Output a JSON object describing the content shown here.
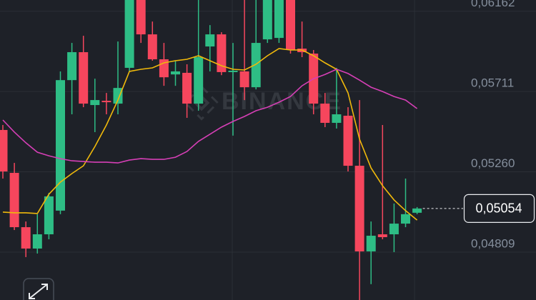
{
  "chart_data": {
    "type": "candlestick",
    "watermark": "BINANCE",
    "ylim": [
      0.0454,
      0.06225
    ],
    "yticks": [
      {
        "value": 0.06162,
        "label": "0,06162"
      },
      {
        "value": 0.05711,
        "label": "0,05711"
      },
      {
        "value": 0.0526,
        "label": "0,05260"
      },
      {
        "value": 0.04809,
        "label": "0,04809"
      }
    ],
    "grid": true,
    "up_color": "#2ebd85",
    "down_color": "#f6465d",
    "open": [
      0.05495,
      0.05254,
      0.04949,
      0.04829,
      0.04909,
      0.05042,
      0.05775,
      0.05932,
      0.05635,
      0.05659,
      0.05643,
      0.05844,
      0.0624,
      0.06032,
      0.05892,
      0.05807,
      0.05816,
      0.05643,
      0.05964,
      0.06032,
      0.0582,
      0.05824,
      0.05735,
      0.06004,
      0.06012,
      0.0624,
      0.05952,
      0.05924,
      0.05643,
      0.05535,
      0.05575,
      0.05294,
      0.04813,
      0.04909,
      0.04909,
      0.04969,
      0.0503
    ],
    "high": [
      0.05523,
      0.0531,
      0.04981,
      0.05022,
      0.05142,
      0.05824,
      0.05984,
      0.06024,
      0.05783,
      0.05703,
      0.05992,
      0.0626,
      0.0626,
      0.06104,
      0.05984,
      0.05884,
      0.05864,
      0.0626,
      0.06084,
      0.06044,
      0.05984,
      0.0626,
      0.0626,
      0.0626,
      0.0626,
      0.0626,
      0.06104,
      0.05944,
      0.05703,
      0.05844,
      0.05623,
      0.05663,
      0.04981,
      0.05523,
      0.05082,
      0.05222,
      0.05062
    ],
    "low": [
      0.05222,
      0.04933,
      0.04781,
      0.04801,
      0.04881,
      0.05022,
      0.05583,
      0.05623,
      0.05483,
      0.05583,
      0.05583,
      0.05824,
      0.05984,
      0.05884,
      0.05743,
      0.05743,
      0.05563,
      0.05603,
      0.05824,
      0.05803,
      0.05463,
      0.05663,
      0.05723,
      0.05984,
      0.05984,
      0.05924,
      0.05904,
      0.05583,
      0.05511,
      0.05503,
      0.05262,
      0.0453,
      0.04629,
      0.04881,
      0.04809,
      0.04949,
      0.05022
    ],
    "close": [
      0.05262,
      0.04949,
      0.04829,
      0.04909,
      0.05122,
      0.05775,
      0.05932,
      0.05643,
      0.05663,
      0.05651,
      0.05731,
      0.0624,
      0.06032,
      0.05892,
      0.05791,
      0.05824,
      0.05643,
      0.05904,
      0.06032,
      0.0582,
      0.05828,
      0.05735,
      0.05984,
      0.0624,
      0.0624,
      0.05944,
      0.05932,
      0.05643,
      0.05535,
      0.05583,
      0.05294,
      0.04813,
      0.04901,
      0.04893,
      0.04969,
      0.05022,
      0.05054
    ],
    "overlays": [
      {
        "color": "#f0b90b",
        "values": [
          0.05034,
          0.0503,
          0.0503,
          0.05026,
          0.05134,
          0.05202,
          0.0525,
          0.05294,
          0.05402,
          0.05523,
          0.05663,
          0.05824,
          0.05836,
          0.05844,
          0.05872,
          0.05884,
          0.05892,
          0.05912,
          0.05884,
          0.05856,
          0.05836,
          0.05832,
          0.05864,
          0.05912,
          0.05952,
          0.05944,
          0.05944,
          0.05912,
          0.05872,
          0.05836,
          0.05703,
          0.05443,
          0.05282,
          0.05182,
          0.05102,
          0.05042,
          0.04989
        ]
      },
      {
        "color": "#d63fb6",
        "values": [
          0.05551,
          0.05483,
          0.05423,
          0.0537,
          0.0535,
          0.05334,
          0.05322,
          0.05318,
          0.05314,
          0.05314,
          0.0531,
          0.05326,
          0.05334,
          0.0533,
          0.0533,
          0.05342,
          0.05374,
          0.05431,
          0.05471,
          0.05511,
          0.05543,
          0.05571,
          0.05603,
          0.05623,
          0.05651,
          0.05683,
          0.05743,
          0.05783,
          0.05807,
          0.05836,
          0.05812,
          0.05775,
          0.05735,
          0.05711,
          0.05683,
          0.05663,
          0.05615
        ]
      }
    ],
    "last_price": {
      "value": 0.05054,
      "label": "0,05054"
    }
  }
}
